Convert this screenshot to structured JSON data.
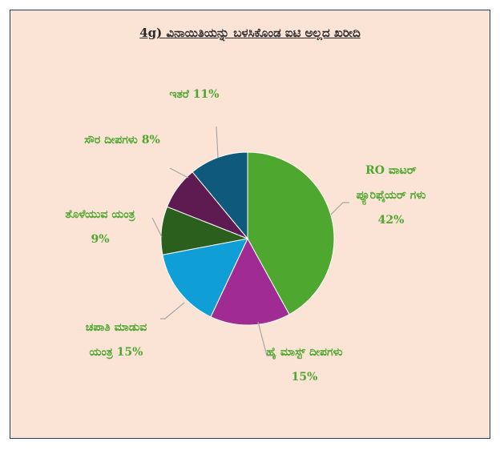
{
  "chart_data": {
    "type": "pie",
    "title": "4g) ವಿನಾಯಿತಿಯನ್ನು ಬಳಸಿಕೊಂಡ ಐಟಿ ಅಲ್ಲದ ಖರೀದಿ",
    "categories": [
      "RO ವಾಟರ್ ಪ್ಯೂರಿಫೈಯರ್ ಗಳು",
      "ಹೈ ಮಾಸ್ಟ್ ದೀಪಗಳು",
      "ಚಪಾತಿ ಮಾಡುವ ಯಂತ್ರ",
      "ತೊಳೆಯುವ ಯಂತ್ರ",
      "ಸೌರ ದೀಪಗಳು",
      "ಇತರೆ"
    ],
    "values": [
      42,
      15,
      15,
      9,
      8,
      11
    ],
    "value_labels": [
      "42%",
      "15%",
      "15%",
      "9%",
      "8%",
      "11%"
    ],
    "colors": [
      "#4ea72e",
      "#a02b93",
      "#0f9ed5",
      "#2a5f1d",
      "#5e1b52",
      "#0f5a7c"
    ],
    "label_color": "#4ea72e"
  }
}
